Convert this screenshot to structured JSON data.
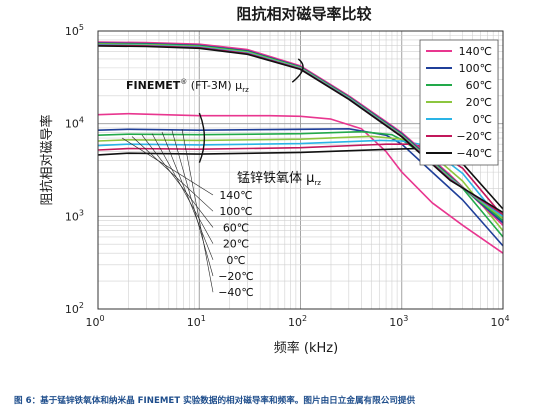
{
  "chart_data": {
    "type": "line",
    "title": "阻抗相对磁导率比较",
    "xlabel": "频率 (kHz)",
    "ylabel": "阻抗相对磁导率",
    "x_scale": "log",
    "y_scale": "log",
    "xlim": [
      1,
      10000
    ],
    "ylim": [
      100,
      100000
    ],
    "x_ticks": [
      {
        "base": "10",
        "exp": "0"
      },
      {
        "base": "10",
        "exp": "1"
      },
      {
        "base": "10",
        "exp": "2"
      },
      {
        "base": "10",
        "exp": "3"
      },
      {
        "base": "10",
        "exp": "4"
      }
    ],
    "y_ticks": [
      {
        "base": "10",
        "exp": "2"
      },
      {
        "base": "10",
        "exp": "3"
      },
      {
        "base": "10",
        "exp": "4"
      },
      {
        "base": "10",
        "exp": "5"
      }
    ],
    "grid": true,
    "legend_position": "top-right",
    "annotations": {
      "finemet_label": "FINEMET",
      "finemet_reg": "®",
      "finemet_model": " (FT-3M)  μ",
      "finemet_sub": "rz",
      "ferrite_label": "锰锌铁氧体  μ",
      "ferrite_sub": "rz"
    },
    "series": [
      {
        "name": "140℃",
        "color": "#e8368f",
        "finemet": [
          [
            1,
            76000
          ],
          [
            3,
            75000
          ],
          [
            10,
            72000
          ],
          [
            30,
            63000
          ],
          [
            100,
            42000
          ],
          [
            300,
            20000
          ],
          [
            1000,
            8000
          ],
          [
            3000,
            2800
          ],
          [
            10000,
            800
          ]
        ],
        "ferrite": [
          [
            1,
            12500
          ],
          [
            2,
            12800
          ],
          [
            10,
            12200
          ],
          [
            50,
            12200
          ],
          [
            100,
            12000
          ],
          [
            200,
            11200
          ],
          [
            400,
            8800
          ],
          [
            700,
            5000
          ],
          [
            1000,
            3000
          ],
          [
            2000,
            1400
          ],
          [
            4000,
            800
          ],
          [
            10000,
            400
          ]
        ]
      },
      {
        "name": "100℃",
        "color": "#1f3f99",
        "finemet": [
          [
            1,
            74000
          ],
          [
            3,
            73000
          ],
          [
            10,
            70000
          ],
          [
            30,
            61000
          ],
          [
            100,
            41000
          ],
          [
            300,
            19500
          ],
          [
            1000,
            7800
          ],
          [
            3000,
            2700
          ],
          [
            10000,
            850
          ]
        ],
        "ferrite": [
          [
            1,
            8500
          ],
          [
            2,
            8700
          ],
          [
            10,
            8500
          ],
          [
            100,
            8700
          ],
          [
            300,
            8800
          ],
          [
            700,
            7500
          ],
          [
            1000,
            6000
          ],
          [
            2000,
            3000
          ],
          [
            4000,
            1500
          ],
          [
            10000,
            480
          ]
        ]
      },
      {
        "name": "60℃",
        "color": "#22a94a",
        "finemet": [
          [
            1,
            73000
          ],
          [
            3,
            72000
          ],
          [
            10,
            69000
          ],
          [
            30,
            60000
          ],
          [
            100,
            40500
          ],
          [
            300,
            19200
          ],
          [
            1000,
            7600
          ],
          [
            3000,
            2650
          ],
          [
            10000,
            900
          ]
        ],
        "ferrite": [
          [
            1,
            7500
          ],
          [
            2,
            7700
          ],
          [
            10,
            7600
          ],
          [
            100,
            7800
          ],
          [
            400,
            8200
          ],
          [
            800,
            7600
          ],
          [
            1000,
            6700
          ],
          [
            2000,
            4000
          ],
          [
            4000,
            2000
          ],
          [
            10000,
            600
          ]
        ]
      },
      {
        "name": "20℃",
        "color": "#8cc63f",
        "finemet": [
          [
            1,
            72000
          ],
          [
            3,
            71000
          ],
          [
            10,
            68000
          ],
          [
            30,
            59000
          ],
          [
            100,
            40000
          ],
          [
            300,
            19000
          ],
          [
            1000,
            7500
          ],
          [
            3000,
            2600
          ],
          [
            10000,
            950
          ]
        ],
        "ferrite": [
          [
            1,
            6500
          ],
          [
            2,
            6700
          ],
          [
            10,
            6600
          ],
          [
            100,
            6800
          ],
          [
            500,
            7300
          ],
          [
            1000,
            6800
          ],
          [
            1300,
            6000
          ],
          [
            2000,
            4600
          ],
          [
            4000,
            2400
          ],
          [
            10000,
            700
          ]
        ]
      },
      {
        "name": "0℃",
        "color": "#2ab4e6",
        "finemet": [
          [
            1,
            71000
          ],
          [
            3,
            70000
          ],
          [
            10,
            67000
          ],
          [
            30,
            58000
          ],
          [
            100,
            39500
          ],
          [
            300,
            18800
          ],
          [
            1000,
            7400
          ],
          [
            3000,
            2550
          ],
          [
            10000,
            1000
          ]
        ],
        "ferrite": [
          [
            1,
            5800
          ],
          [
            2,
            6000
          ],
          [
            10,
            5900
          ],
          [
            100,
            6100
          ],
          [
            600,
            6600
          ],
          [
            1000,
            6500
          ],
          [
            1500,
            6000
          ],
          [
            2000,
            5200
          ],
          [
            4000,
            2900
          ],
          [
            10000,
            850
          ]
        ]
      },
      {
        "name": "−20℃",
        "color": "#c2185b",
        "finemet": [
          [
            1,
            70000
          ],
          [
            3,
            69000
          ],
          [
            10,
            66000
          ],
          [
            30,
            57000
          ],
          [
            100,
            39000
          ],
          [
            300,
            18500
          ],
          [
            1000,
            7300
          ],
          [
            3000,
            2500
          ],
          [
            10000,
            1050
          ]
        ],
        "ferrite": [
          [
            1,
            5200
          ],
          [
            2,
            5400
          ],
          [
            10,
            5300
          ],
          [
            100,
            5500
          ],
          [
            700,
            6000
          ],
          [
            1200,
            6000
          ],
          [
            2000,
            5400
          ],
          [
            4000,
            3300
          ],
          [
            10000,
            1000
          ]
        ]
      },
      {
        "name": "−40℃",
        "color": "#111111",
        "finemet": [
          [
            1,
            69000
          ],
          [
            3,
            68000
          ],
          [
            10,
            65000
          ],
          [
            30,
            56000
          ],
          [
            100,
            38500
          ],
          [
            300,
            18300
          ],
          [
            1000,
            7200
          ],
          [
            3000,
            2450
          ],
          [
            10000,
            1100
          ]
        ],
        "ferrite": [
          [
            1,
            4600
          ],
          [
            2,
            4800
          ],
          [
            10,
            4700
          ],
          [
            100,
            4900
          ],
          [
            800,
            5300
          ],
          [
            1500,
            5400
          ],
          [
            2500,
            4900
          ],
          [
            4000,
            3700
          ],
          [
            10000,
            1200
          ]
        ]
      }
    ],
    "temperature_labels": [
      "140℃",
      "100℃",
      "60℃",
      "20℃",
      "0℃",
      "−20℃",
      "−40℃"
    ]
  },
  "caption": "图 6：基于锰锌铁氧体和纳米晶 FINEMET 实验数据的相对磁导率和频率。图片由日立金属有限公司提供"
}
